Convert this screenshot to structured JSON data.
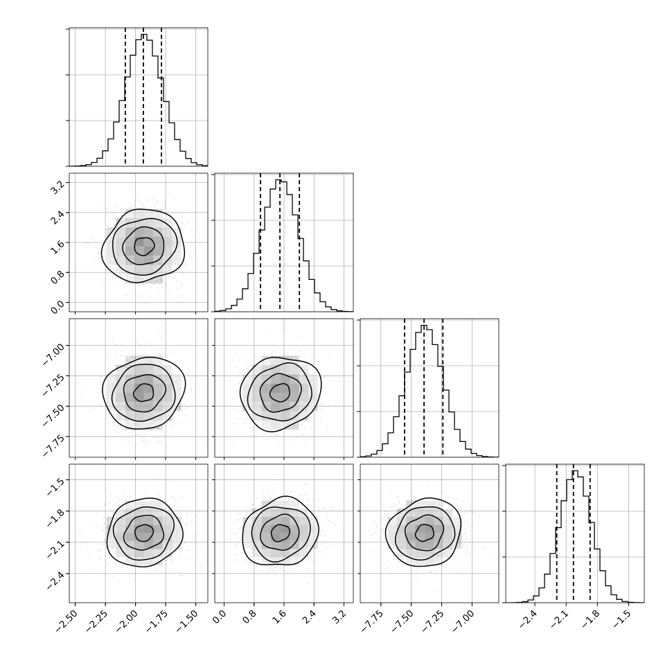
{
  "chart_data": {
    "type": "corner",
    "parameters": 4,
    "colors": {
      "line": "#000000",
      "grid": "#b0b0b0",
      "scatter": "#7a7a7a",
      "density": "#000000"
    },
    "grid": true,
    "ranges": [
      [
        -2.55,
        -1.4
      ],
      [
        -0.25,
        3.45
      ],
      [
        -7.92,
        -6.78
      ],
      [
        -2.68,
        -1.35
      ]
    ],
    "ticks": [
      {
        "values": [
          -2.5,
          -2.25,
          -2.0,
          -1.75,
          -1.5
        ],
        "labels": [
          "−2.50",
          "−2.25",
          "−2.00",
          "−1.75",
          "−1.50"
        ]
      },
      {
        "values": [
          0.0,
          0.8,
          1.6,
          2.4,
          3.2
        ],
        "labels": [
          "0.0",
          "0.8",
          "1.6",
          "2.4",
          "3.2"
        ]
      },
      {
        "values": [
          -7.75,
          -7.5,
          -7.25,
          -7.0
        ],
        "labels": [
          "−7.75",
          "−7.50",
          "−7.25",
          "−7.00"
        ]
      },
      {
        "values": [
          -2.4,
          -2.1,
          -1.8,
          -1.5
        ],
        "labels": [
          "−2.4",
          "−2.1",
          "−1.8",
          "−1.5"
        ]
      }
    ],
    "marginals": [
      {
        "mean": -1.93,
        "sd": 0.155,
        "quantiles": [
          -2.085,
          -1.935,
          -1.785
        ]
      },
      {
        "mean": 1.5,
        "sd": 0.5,
        "quantiles": [
          0.97,
          1.49,
          2.01
        ]
      },
      {
        "mean": -7.39,
        "sd": 0.152,
        "quantiles": [
          -7.555,
          -7.395,
          -7.24
        ]
      },
      {
        "mean": -2.01,
        "sd": 0.155,
        "quantiles": [
          -2.19,
          -2.03,
          -1.87
        ]
      }
    ],
    "density_levels": [
      0.118,
      0.393,
      0.675,
      0.865
    ]
  }
}
